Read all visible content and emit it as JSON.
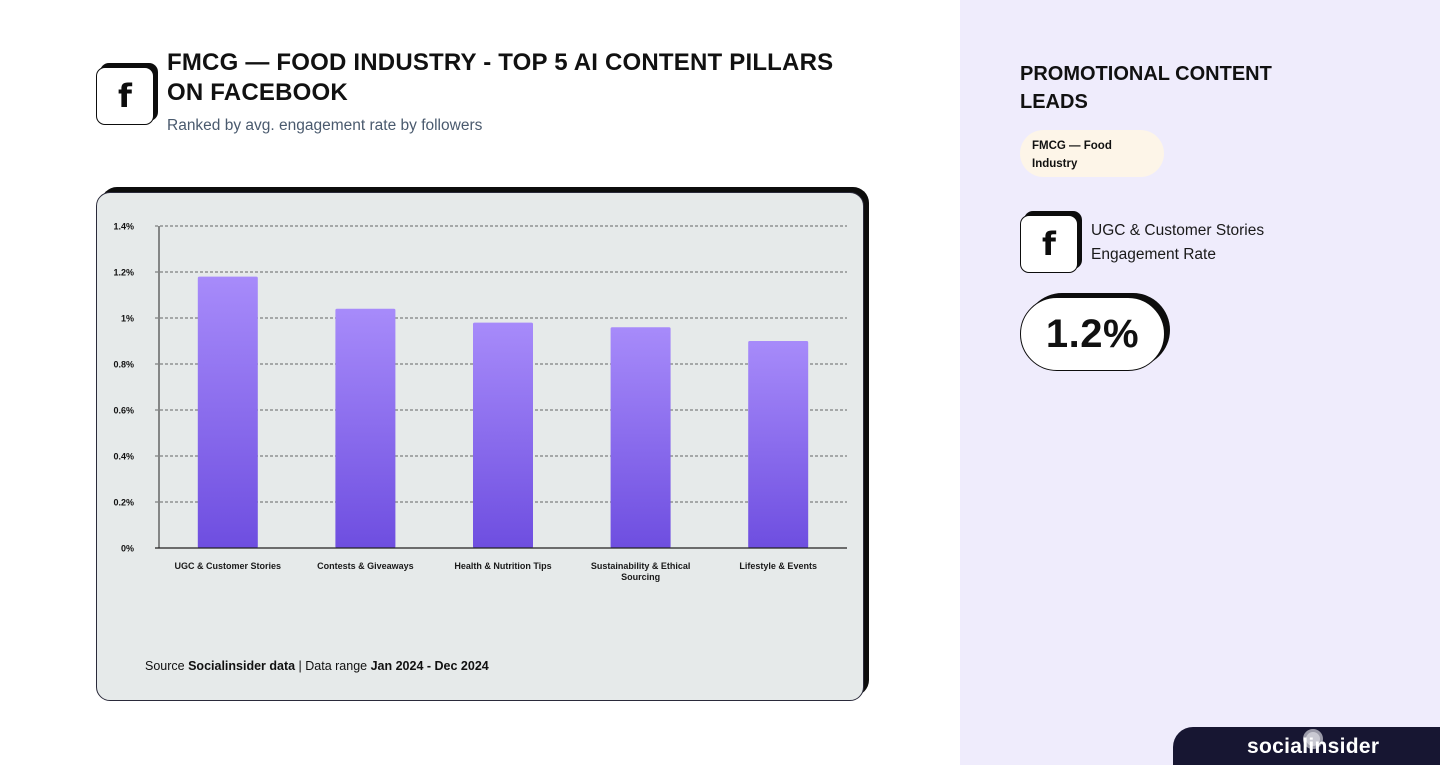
{
  "header": {
    "platform_icon": "facebook-icon",
    "platform_glyph": "f",
    "title": "FMCG — FOOD INDUSTRY - TOP 5 AI CONTENT PILLARS ON FACEBOOK",
    "subtitle": "Ranked by avg. engagement rate by followers"
  },
  "source": {
    "prefix": "Source ",
    "name": "Socialinsider data",
    "separator": " | Data range ",
    "range": "Jan 2024 - Dec 2024"
  },
  "chart_data": {
    "type": "bar",
    "title": "FMCG — FOOD INDUSTRY - TOP 5 AI CONTENT PILLARS ON FACEBOOK",
    "subtitle": "Ranked by avg. engagement rate by followers",
    "xlabel": "",
    "ylabel": "",
    "categories": [
      [
        "UGC & Customer Stories"
      ],
      [
        "Contests & Giveaways"
      ],
      [
        "Health & Nutrition Tips"
      ],
      [
        "Sustainability & Ethical",
        "Sourcing"
      ],
      [
        "Lifestyle & Events"
      ]
    ],
    "values": [
      1.18,
      1.04,
      0.98,
      0.96,
      0.9
    ],
    "ylim": [
      0,
      1.4
    ],
    "yticks": [
      0,
      0.2,
      0.4,
      0.6,
      0.8,
      1,
      1.2,
      1.4
    ],
    "ytick_labels": [
      "0%",
      "0.2%",
      "0.4%",
      "0.6%",
      "0.8%",
      "1%",
      "1.2%",
      "1.4%"
    ],
    "grid": "dashed-horizontal",
    "legend": "none",
    "bar_gradient": {
      "top": "#a78bfa",
      "bottom": "#6e4ee0"
    }
  },
  "side_panel": {
    "title": "PROMOTIONAL CONTENT LEADS",
    "industry_tag": "FMCG — Food Industry",
    "platform_icon": "facebook-icon",
    "platform_glyph": "f",
    "metric_label": "UGC & Customer Stories Engagement Rate",
    "metric_value": "1.2%"
  },
  "brand": {
    "name": "socialinsider"
  },
  "colors": {
    "panel_bg": "#efecfc",
    "card_bg": "#e6eaea",
    "pill_bg": "#fdf5e8",
    "brand_bar": "#171632",
    "ink": "#0d0d0d"
  }
}
